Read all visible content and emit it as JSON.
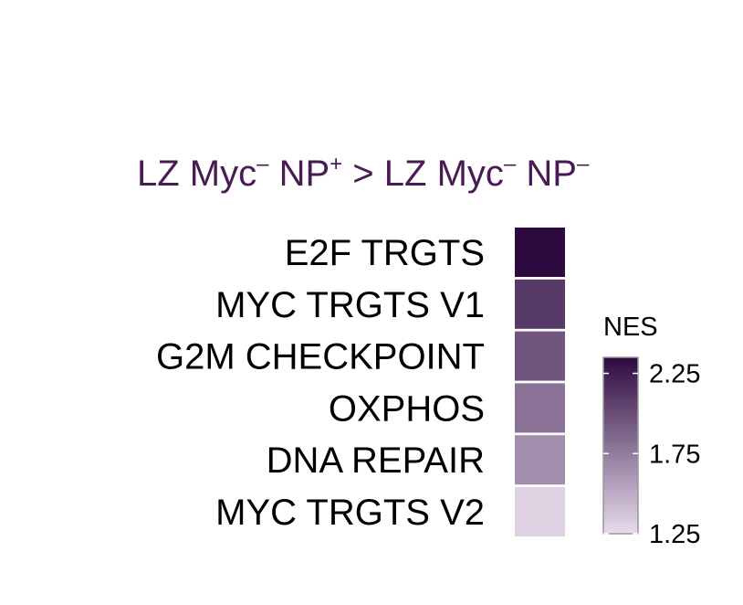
{
  "chart_data": {
    "type": "heatmap",
    "title": {
      "left_main": "LZ Myc",
      "left_sup": "–",
      "left_np": " NP",
      "left_np_sup": "+",
      "op": " > ",
      "right_main": "LZ Myc",
      "right_sup": "–",
      "right_np": " NP",
      "right_np_sup": "–"
    },
    "rows": [
      "E2F TRGTS",
      "MYC TRGTS V1",
      "G2M CHECKPOINT",
      "OXPHOS",
      "DNA REPAIR",
      "MYC TRGTS V2"
    ],
    "values": [
      2.35,
      2.1,
      1.95,
      1.8,
      1.65,
      1.3
    ],
    "legend": {
      "title": "NES",
      "ticks": [
        2.25,
        1.75,
        1.25
      ],
      "tick_labels": [
        "2.25",
        "1.75",
        "1.25"
      ],
      "range": [
        1.25,
        2.35
      ],
      "placement": "right"
    },
    "colors": {
      "low": "#e6dbeb",
      "high": "#2d0a40",
      "title": "#4a1a55"
    }
  }
}
